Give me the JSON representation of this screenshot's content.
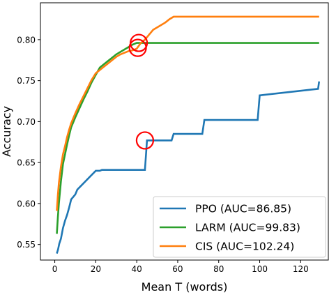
{
  "chart_data": {
    "type": "line",
    "xlabel": "Mean T (words)",
    "ylabel": "Accuracy",
    "xlim": [
      -7,
      133.5
    ],
    "ylim": [
      0.531,
      0.845
    ],
    "xticks": [
      0,
      20,
      40,
      60,
      80,
      100,
      120
    ],
    "yticks": [
      0.55,
      0.6,
      0.65,
      0.7,
      0.75,
      0.8
    ],
    "ytick_labels": [
      "0.55",
      "0.60",
      "0.65",
      "0.70",
      "0.75",
      "0.80"
    ],
    "grid": false,
    "legend_position": "lower-right",
    "series": [
      {
        "name": "PPO (AUC=86.85)",
        "color": "#1f77b4",
        "x": [
          1,
          1.6,
          2.2,
          3,
          4,
          5,
          6,
          7,
          8,
          10,
          11,
          20,
          22,
          23,
          44,
          45,
          57,
          58,
          72,
          73,
          99,
          100,
          128.5,
          129
        ],
        "y": [
          0.539,
          0.544,
          0.551,
          0.557,
          0.57,
          0.579,
          0.586,
          0.595,
          0.605,
          0.611,
          0.617,
          0.64,
          0.64,
          0.641,
          0.641,
          0.677,
          0.677,
          0.685,
          0.685,
          0.702,
          0.702,
          0.732,
          0.74,
          0.749
        ]
      },
      {
        "name": "LARM (AUC=99.83)",
        "color": "#2ca02c",
        "x": [
          1,
          1.5,
          2,
          3,
          4,
          5,
          6,
          7,
          8,
          10,
          12,
          14,
          16,
          18,
          20,
          22,
          24,
          26,
          28,
          30,
          32,
          34,
          36,
          38,
          40,
          42,
          44,
          129
        ],
        "y": [
          0.563,
          0.583,
          0.6,
          0.627,
          0.648,
          0.66,
          0.672,
          0.683,
          0.693,
          0.705,
          0.716,
          0.727,
          0.737,
          0.748,
          0.757,
          0.766,
          0.77,
          0.774,
          0.778,
          0.782,
          0.785,
          0.788,
          0.791,
          0.794,
          0.796,
          0.796,
          0.796,
          0.796
        ]
      },
      {
        "name": "CIS (AUC=102.24)",
        "color": "#ff7f0e",
        "x": [
          1,
          1.5,
          2,
          3,
          4,
          5,
          6,
          7,
          8,
          10,
          12,
          14,
          16,
          18,
          20,
          22,
          24,
          26,
          28,
          30,
          32,
          34,
          36,
          38,
          40,
          42,
          44,
          46,
          48,
          50,
          52,
          54,
          56,
          58,
          129
        ],
        "y": [
          0.591,
          0.61,
          0.625,
          0.645,
          0.66,
          0.67,
          0.681,
          0.69,
          0.698,
          0.71,
          0.721,
          0.731,
          0.741,
          0.751,
          0.759,
          0.763,
          0.767,
          0.771,
          0.775,
          0.779,
          0.782,
          0.784,
          0.786,
          0.787,
          0.789,
          0.796,
          0.8,
          0.806,
          0.812,
          0.815,
          0.818,
          0.821,
          0.825,
          0.828,
          0.828
        ]
      }
    ],
    "annotations": [
      {
        "shape": "circle",
        "x": 41,
        "y": 0.796,
        "color": "#ff0000"
      },
      {
        "shape": "circle",
        "x": 40.5,
        "y": 0.79,
        "color": "#ff0000"
      },
      {
        "shape": "circle",
        "x": 44,
        "y": 0.677,
        "color": "#ff0000"
      }
    ]
  }
}
